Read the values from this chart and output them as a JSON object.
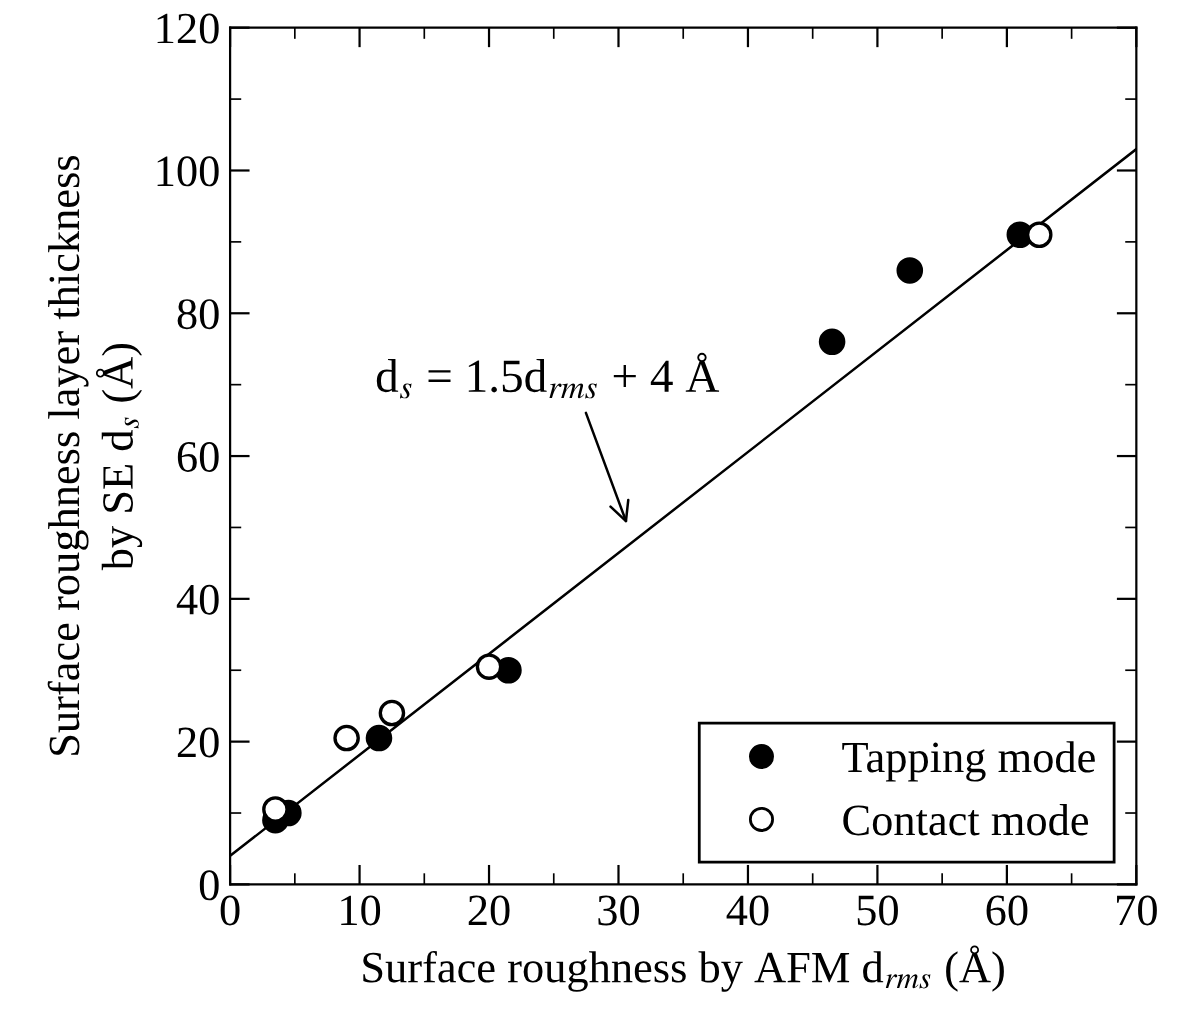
{
  "chart_data": {
    "type": "scatter",
    "xlabel": "Surface roughness by AFM d$_{rms}$ (Å)",
    "ylabel": "Surface roughness layer thickness\nby SE d$_{s}$ (Å)",
    "series": [
      {
        "name": "Tapping mode",
        "color": "#000000",
        "x": [
          3.5,
          4.5,
          11.5,
          21.5,
          46.5,
          52.5,
          61
        ],
        "values": [
          9,
          10,
          20.5,
          30,
          76,
          86,
          91
        ],
        "marker": "circle"
      },
      {
        "name": "Contact mode",
        "color": "#ffffff",
        "x": [
          3.5,
          9,
          12.5,
          20,
          62.5
        ],
        "values": [
          10.5,
          20.5,
          24,
          30.5,
          91
        ],
        "marker": "circle"
      },
      {
        "type": "line",
        "color": "#000000",
        "x": [
          0,
          70
        ],
        "values": [
          4,
          103
        ]
      }
    ],
    "annotations": [
      "d$_{s}$ = 1.5d$_{rms}$ + 4 Å"
    ],
    "xlim": [
      0,
      70
    ],
    "ylim": [
      0,
      120
    ],
    "xticks": [
      0,
      10,
      20,
      30,
      40,
      50,
      60,
      70
    ],
    "yticks": [
      0,
      20,
      40,
      60,
      80,
      100,
      120
    ],
    "line_style": "solid",
    "grid": false,
    "legend": "bottom right"
  }
}
